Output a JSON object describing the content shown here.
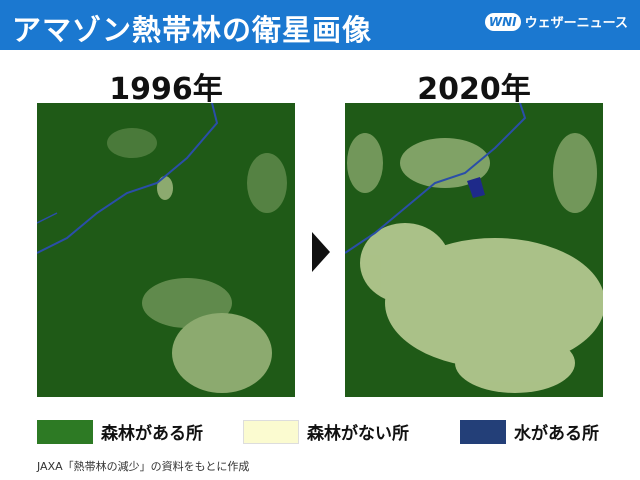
{
  "header": {
    "title": "アマゾン熱帯林の衛星画像",
    "logo_mark": "WNI",
    "logo_text": "ウェザーニュース"
  },
  "panels": [
    {
      "label": "1996年"
    },
    {
      "label": "2020年"
    }
  ],
  "legend": [
    {
      "label": "森林がある所",
      "color": "#2d7a24"
    },
    {
      "label": "森林がない所",
      "color": "#fbfbd0"
    },
    {
      "label": "水がある所",
      "color": "#233f78"
    }
  ],
  "source": "JAXA「熱帯林の減少」の資料をもとに作成"
}
